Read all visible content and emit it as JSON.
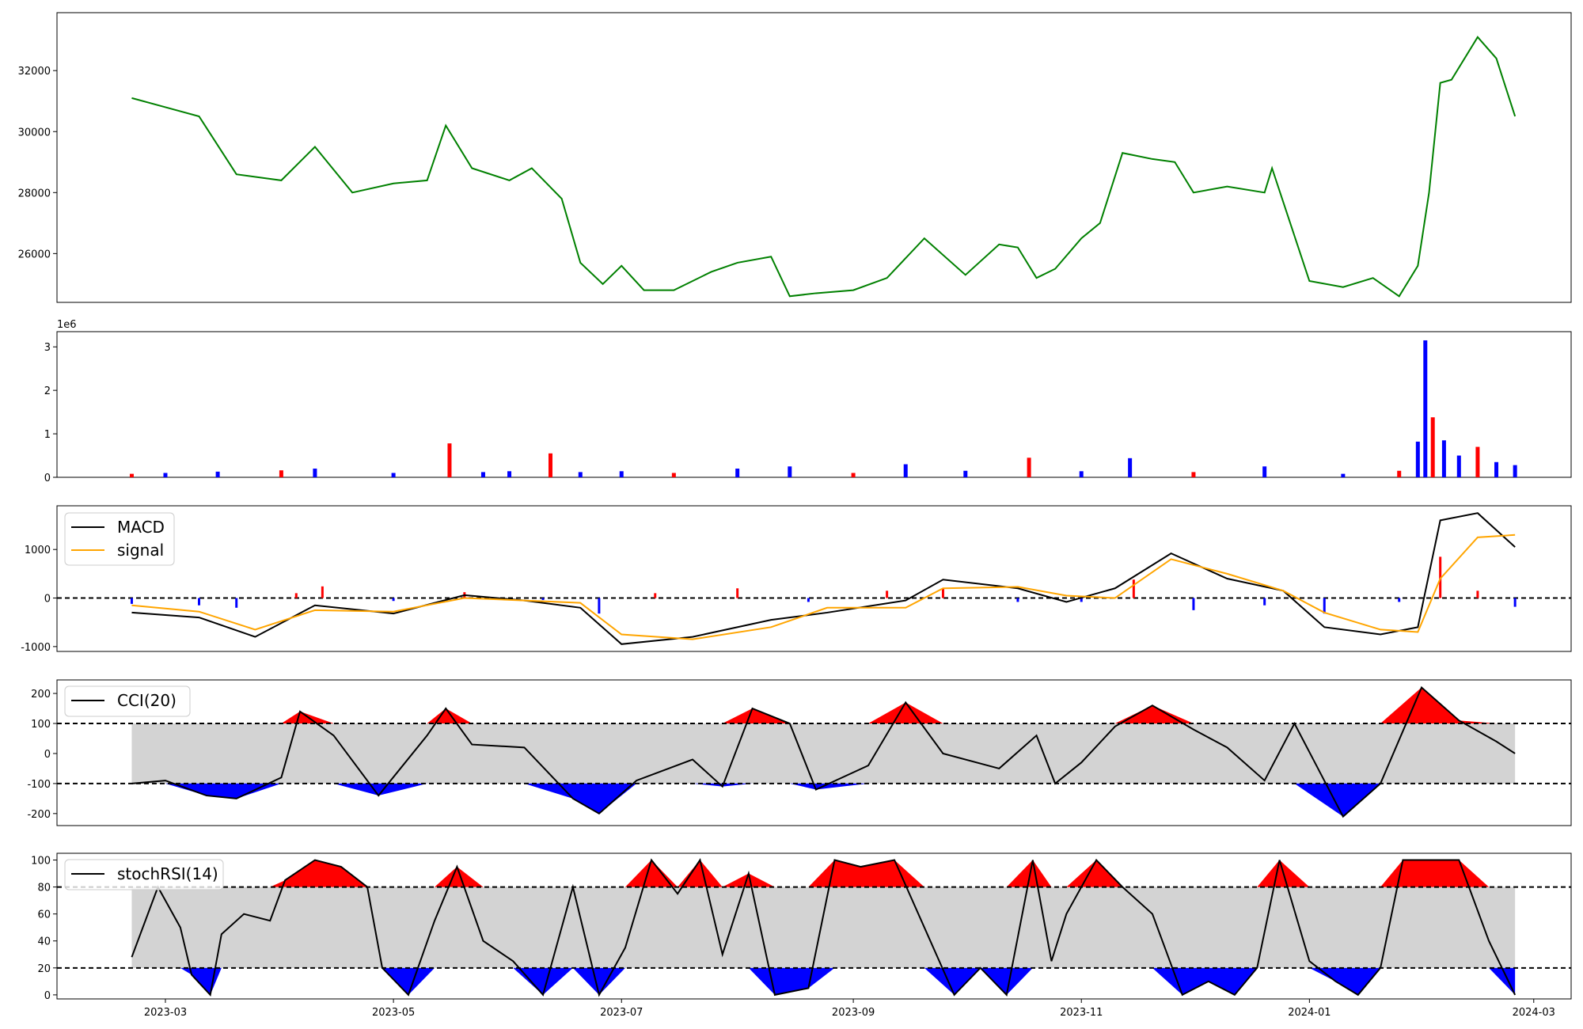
{
  "chart_data": [
    {
      "panel": "price",
      "type": "line",
      "color": "#008000",
      "ylim": [
        24400,
        33900
      ],
      "yticks": [
        26000,
        28000,
        30000,
        32000
      ],
      "x": [
        "2023-02-20",
        "2023-03-01",
        "2023-03-10",
        "2023-03-20",
        "2023-04-01",
        "2023-04-10",
        "2023-04-20",
        "2023-05-01",
        "2023-05-10",
        "2023-05-15",
        "2023-05-22",
        "2023-06-01",
        "2023-06-07",
        "2023-06-15",
        "2023-06-20",
        "2023-06-26",
        "2023-07-01",
        "2023-07-07",
        "2023-07-15",
        "2023-07-25",
        "2023-08-01",
        "2023-08-10",
        "2023-08-15",
        "2023-08-22",
        "2023-09-01",
        "2023-09-10",
        "2023-09-20",
        "2023-10-01",
        "2023-10-10",
        "2023-10-15",
        "2023-10-20",
        "2023-10-25",
        "2023-11-01",
        "2023-11-06",
        "2023-11-12",
        "2023-11-20",
        "2023-11-26",
        "2023-12-01",
        "2023-12-10",
        "2023-12-20",
        "2023-12-22",
        "2024-01-01",
        "2024-01-10",
        "2024-01-18",
        "2024-01-25",
        "2024-01-30",
        "2024-02-02",
        "2024-02-05",
        "2024-02-08",
        "2024-02-15",
        "2024-02-20",
        "2024-02-25"
      ],
      "values": [
        31100,
        30800,
        30500,
        28600,
        28400,
        29500,
        28000,
        28300,
        28400,
        30200,
        28800,
        28400,
        28800,
        27800,
        25700,
        25000,
        25600,
        24800,
        24800,
        25400,
        25700,
        25900,
        24600,
        24700,
        24800,
        25200,
        26500,
        25300,
        26300,
        26200,
        25200,
        25500,
        26500,
        27000,
        29300,
        29100,
        29000,
        28000,
        28200,
        28000,
        28800,
        25100,
        24900,
        25200,
        24600,
        25600,
        28000,
        31600,
        31700,
        33100,
        32400,
        30500
      ]
    },
    {
      "panel": "volume",
      "type": "bar",
      "exponent_label": "1e6",
      "ylim": [
        0,
        3.35
      ],
      "yticks": [
        0,
        1,
        2,
        3
      ],
      "x": [
        "2023-02-20",
        "2023-03-01",
        "2023-03-15",
        "2023-04-01",
        "2023-04-10",
        "2023-05-01",
        "2023-05-16",
        "2023-05-25",
        "2023-06-01",
        "2023-06-12",
        "2023-06-20",
        "2023-07-01",
        "2023-07-15",
        "2023-08-01",
        "2023-08-15",
        "2023-09-01",
        "2023-09-15",
        "2023-10-01",
        "2023-10-18",
        "2023-11-01",
        "2023-11-14",
        "2023-12-01",
        "2023-12-20",
        "2024-01-10",
        "2024-01-25",
        "2024-01-30",
        "2024-02-01",
        "2024-02-03",
        "2024-02-06",
        "2024-02-10",
        "2024-02-15",
        "2024-02-20",
        "2024-02-25"
      ],
      "values": [
        0.08,
        0.1,
        0.13,
        0.16,
        0.2,
        0.1,
        0.78,
        0.12,
        0.14,
        0.55,
        0.12,
        0.14,
        0.1,
        0.2,
        0.25,
        0.1,
        0.3,
        0.15,
        0.45,
        0.14,
        0.44,
        0.12,
        0.25,
        0.08,
        0.15,
        0.82,
        3.15,
        1.38,
        0.85,
        0.5,
        0.7,
        0.35,
        0.28
      ],
      "up_color": "#ff0000",
      "down_color": "#0000ff"
    },
    {
      "panel": "macd",
      "type": "line",
      "ylim": [
        -1100,
        1900
      ],
      "yticks": [
        -1000,
        0,
        1000
      ],
      "zero_line": 0,
      "series": [
        {
          "name": "MACD",
          "color": "#000000",
          "x": [
            "2023-02-20",
            "2023-03-10",
            "2023-03-25",
            "2023-04-10",
            "2023-05-01",
            "2023-05-20",
            "2023-06-05",
            "2023-06-20",
            "2023-07-01",
            "2023-07-20",
            "2023-08-10",
            "2023-08-25",
            "2023-09-15",
            "2023-09-25",
            "2023-10-15",
            "2023-10-28",
            "2023-11-10",
            "2023-11-25",
            "2023-12-10",
            "2023-12-25",
            "2024-01-05",
            "2024-01-20",
            "2024-01-30",
            "2024-02-05",
            "2024-02-15",
            "2024-02-25"
          ],
          "values": [
            -300,
            -400,
            -800,
            -150,
            -320,
            60,
            -50,
            -200,
            -950,
            -800,
            -450,
            -300,
            -50,
            380,
            200,
            -80,
            200,
            920,
            400,
            150,
            -600,
            -750,
            -600,
            1600,
            1750,
            1050
          ]
        },
        {
          "name": "signal",
          "color": "#ffa500",
          "x": [
            "2023-02-20",
            "2023-03-10",
            "2023-03-25",
            "2023-04-10",
            "2023-05-01",
            "2023-05-20",
            "2023-06-05",
            "2023-06-20",
            "2023-07-01",
            "2023-07-20",
            "2023-08-10",
            "2023-08-25",
            "2023-09-15",
            "2023-09-25",
            "2023-10-15",
            "2023-10-28",
            "2023-11-10",
            "2023-11-25",
            "2023-12-10",
            "2023-12-25",
            "2024-01-05",
            "2024-01-20",
            "2024-01-30",
            "2024-02-05",
            "2024-02-15",
            "2024-02-25"
          ],
          "values": [
            -150,
            -280,
            -650,
            -250,
            -280,
            0,
            -50,
            -100,
            -750,
            -850,
            -600,
            -200,
            -200,
            200,
            230,
            50,
            0,
            800,
            500,
            150,
            -300,
            -650,
            -700,
            400,
            1250,
            1300
          ]
        }
      ],
      "histogram": {
        "x": [
          "2023-02-20",
          "2023-03-10",
          "2023-03-20",
          "2023-04-05",
          "2023-04-12",
          "2023-05-01",
          "2023-05-20",
          "2023-06-10",
          "2023-06-25",
          "2023-07-10",
          "2023-08-01",
          "2023-08-20",
          "2023-09-10",
          "2023-09-25",
          "2023-10-15",
          "2023-11-01",
          "2023-11-15",
          "2023-12-01",
          "2023-12-20",
          "2024-01-05",
          "2024-01-25",
          "2024-02-05",
          "2024-02-15",
          "2024-02-25"
        ],
        "values": [
          -120,
          -150,
          -200,
          100,
          240,
          -60,
          120,
          -40,
          -320,
          100,
          200,
          -80,
          150,
          200,
          -80,
          -80,
          380,
          -250,
          -150,
          -320,
          -80,
          850,
          150,
          -180
        ]
      }
    },
    {
      "panel": "cci",
      "type": "area",
      "ylim": [
        -240,
        245
      ],
      "yticks": [
        -200,
        -100,
        0,
        100,
        200
      ],
      "thresholds": [
        100,
        -100
      ],
      "series": [
        {
          "name": "CCI(20)",
          "color": "#000000",
          "x": [
            "2023-02-20",
            "2023-03-01",
            "2023-03-12",
            "2023-03-20",
            "2023-04-01",
            "2023-04-06",
            "2023-04-15",
            "2023-04-27",
            "2023-05-10",
            "2023-05-15",
            "2023-05-22",
            "2023-06-05",
            "2023-06-18",
            "2023-06-25",
            "2023-07-05",
            "2023-07-20",
            "2023-07-28",
            "2023-08-05",
            "2023-08-15",
            "2023-08-22",
            "2023-09-05",
            "2023-09-15",
            "2023-09-25",
            "2023-10-10",
            "2023-10-20",
            "2023-10-25",
            "2023-11-01",
            "2023-11-10",
            "2023-11-20",
            "2023-12-01",
            "2023-12-10",
            "2023-12-20",
            "2023-12-28",
            "2024-01-10",
            "2024-01-20",
            "2024-01-31",
            "2024-02-10",
            "2024-02-20",
            "2024-02-25"
          ],
          "values": [
            -100,
            -90,
            -140,
            -150,
            -80,
            140,
            60,
            -140,
            60,
            150,
            30,
            20,
            -150,
            -200,
            -90,
            -20,
            -110,
            150,
            100,
            -120,
            -40,
            170,
            0,
            -50,
            60,
            -100,
            -30,
            90,
            160,
            80,
            20,
            -90,
            100,
            -210,
            -100,
            220,
            110,
            40,
            0
          ]
        }
      ],
      "overbought_color": "#ff0000",
      "oversold_color": "#0000ff",
      "band_color": "#d3d3d3"
    },
    {
      "panel": "stochrsi",
      "type": "area",
      "ylim": [
        -3,
        105
      ],
      "yticks": [
        0,
        20,
        40,
        60,
        80,
        100
      ],
      "thresholds": [
        80,
        20
      ],
      "series": [
        {
          "name": "stochRSI(14)",
          "color": "#000000",
          "x": [
            "2023-02-20",
            "2023-02-27",
            "2023-03-05",
            "2023-03-08",
            "2023-03-13",
            "2023-03-16",
            "2023-03-22",
            "2023-03-29",
            "2023-04-02",
            "2023-04-10",
            "2023-04-17",
            "2023-04-24",
            "2023-04-28",
            "2023-05-05",
            "2023-05-12",
            "2023-05-18",
            "2023-05-25",
            "2023-06-02",
            "2023-06-10",
            "2023-06-18",
            "2023-06-25",
            "2023-07-02",
            "2023-07-09",
            "2023-07-16",
            "2023-07-22",
            "2023-07-28",
            "2023-08-04",
            "2023-08-11",
            "2023-08-20",
            "2023-08-27",
            "2023-09-03",
            "2023-09-12",
            "2023-09-20",
            "2023-09-28",
            "2023-10-05",
            "2023-10-12",
            "2023-10-19",
            "2023-10-24",
            "2023-10-28",
            "2023-11-05",
            "2023-11-12",
            "2023-11-20",
            "2023-11-28",
            "2023-12-05",
            "2023-12-12",
            "2023-12-18",
            "2023-12-24",
            "2024-01-01",
            "2024-01-08",
            "2024-01-14",
            "2024-01-20",
            "2024-01-26",
            "2024-02-02",
            "2024-02-10",
            "2024-02-18",
            "2024-02-25"
          ],
          "values": [
            28,
            80,
            50,
            15,
            0,
            45,
            60,
            55,
            85,
            100,
            95,
            80,
            20,
            0,
            55,
            95,
            40,
            25,
            0,
            80,
            0,
            35,
            100,
            75,
            100,
            30,
            90,
            0,
            5,
            100,
            95,
            100,
            50,
            0,
            20,
            0,
            100,
            25,
            60,
            100,
            80,
            60,
            0,
            10,
            0,
            20,
            100,
            25,
            10,
            0,
            20,
            100,
            100,
            100,
            40,
            0
          ]
        }
      ],
      "overbought_color": "#ff0000",
      "oversold_color": "#0000ff",
      "band_color": "#d3d3d3"
    }
  ],
  "x_axis": {
    "tick_labels": [
      "2023-03",
      "2023-05",
      "2023-07",
      "2023-09",
      "2023-11",
      "2024-01",
      "2024-03"
    ],
    "range": [
      "2023-01-31",
      "2024-03-11"
    ]
  },
  "legend": {
    "macd_label": "MACD",
    "signal_label": "signal",
    "cci_label": "CCI(20)",
    "stoch_label": "stochRSI(14)"
  }
}
